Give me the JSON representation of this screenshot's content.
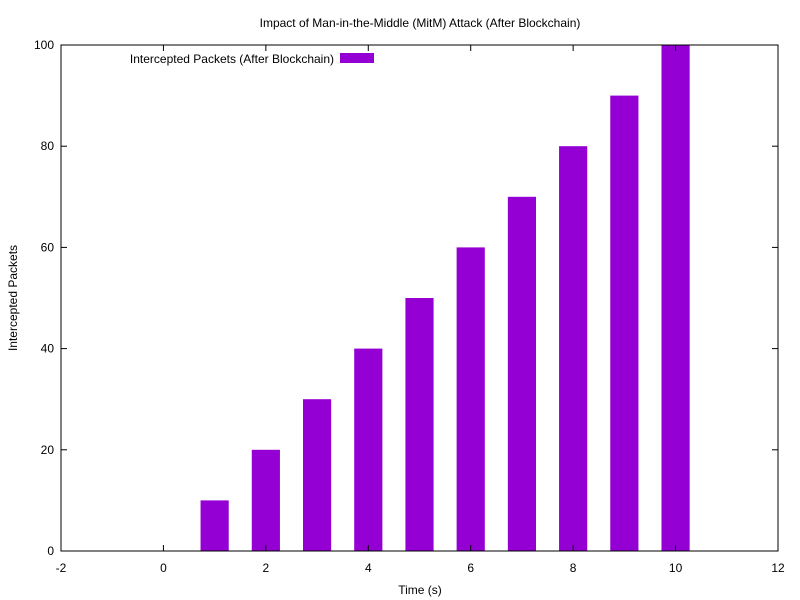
{
  "chart_data": {
    "type": "bar",
    "title": "Impact of Man-in-the-Middle (MitM) Attack (After Blockchain)",
    "xlabel": "Time (s)",
    "ylabel": "Intercepted Packets",
    "x": [
      1,
      2,
      3,
      4,
      5,
      6,
      7,
      8,
      9,
      10
    ],
    "series": [
      {
        "name": "Intercepted Packets (After Blockchain)",
        "values": [
          10,
          20,
          30,
          40,
          50,
          60,
          70,
          80,
          90,
          100
        ],
        "color": "#9400d3"
      }
    ],
    "xlim": [
      -2,
      12
    ],
    "ylim": [
      0,
      100
    ],
    "xticks": [
      "-2",
      "0",
      "2",
      "4",
      "6",
      "8",
      "10",
      "12"
    ],
    "yticks": [
      "0",
      "20",
      "40",
      "60",
      "80",
      "100"
    ],
    "bar_width": 0.55,
    "legend_position": "top-left",
    "grid": false
  }
}
